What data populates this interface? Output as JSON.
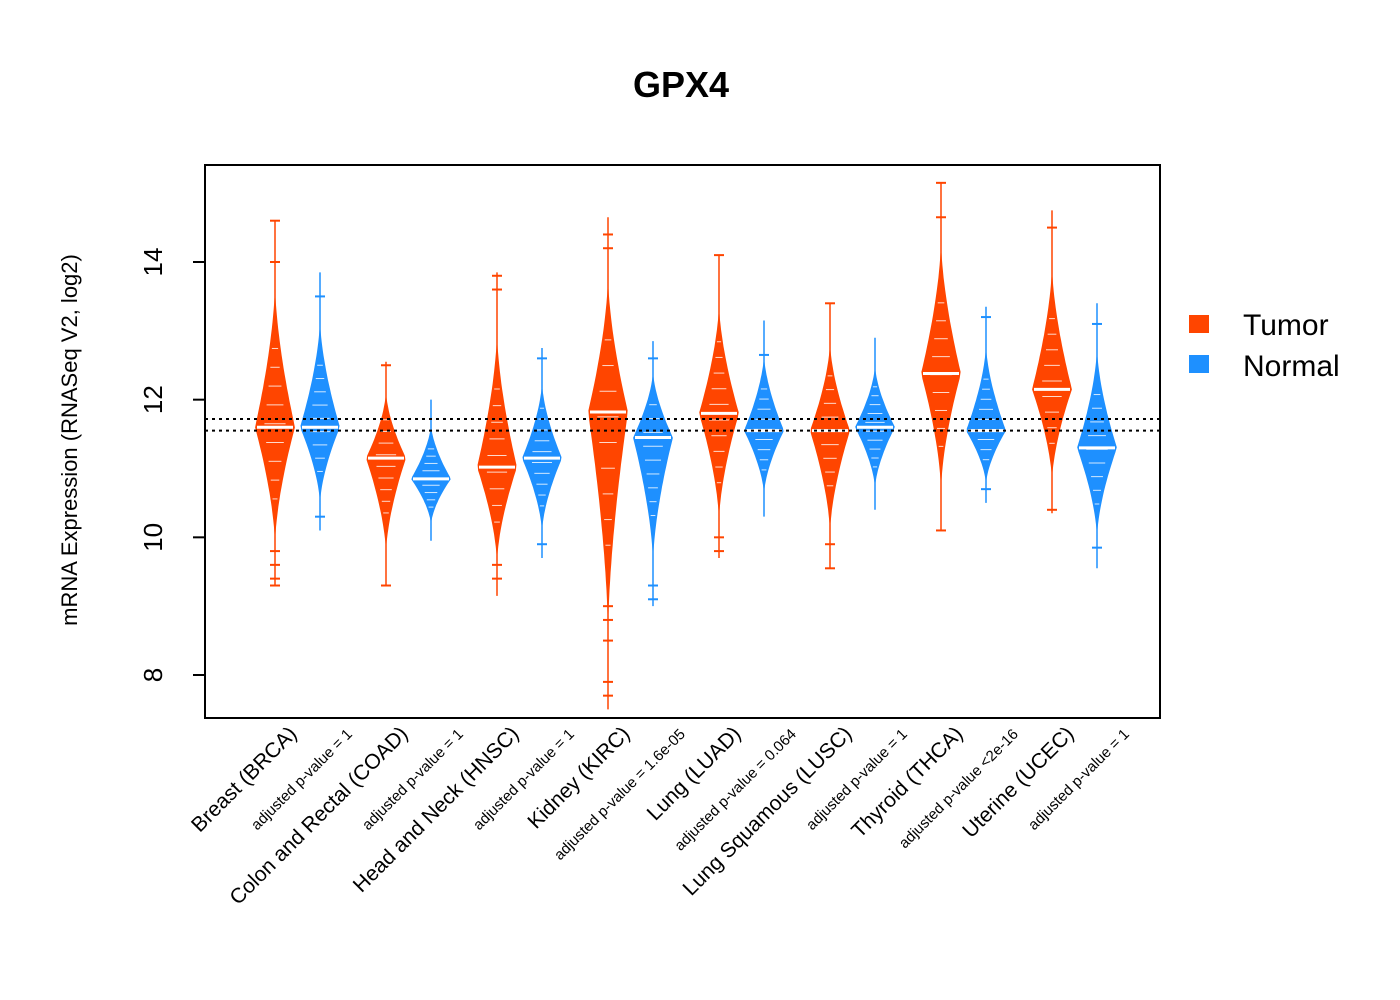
{
  "chart_data": {
    "type": "beanplot",
    "title": "GPX4",
    "xlabel": "",
    "ylabel": "mRNA Expression (RNASeq V2, log2)",
    "ylim": [
      7.4,
      15.4
    ],
    "yticks": [
      8,
      10,
      12,
      14
    ],
    "reference_lines": [
      11.55,
      11.72
    ],
    "colors": {
      "tumor": "#FF4500",
      "normal": "#1E90FF"
    },
    "legend": {
      "position": "right",
      "entries": [
        "Tumor",
        "Normal"
      ]
    },
    "categories": [
      "Breast (BRCA)",
      "Colon and Rectal (COAD)",
      "Head and Neck (HNSC)",
      "Kidney (KIRC)",
      "Lung (LUAD)",
      "Lung Squamous (LUSC)",
      "Thyroid (THCA)",
      "Uterine (UCEC)"
    ],
    "pvalue_labels": [
      "adjusted p-value = 1",
      "adjusted p-value = 1",
      "adjusted p-value = 1",
      "adjusted p-value = 1.6e-05",
      "adjusted p-value = 0.064",
      "adjusted p-value = 1",
      "adjusted p-value <2e-16",
      "adjusted p-value = 1"
    ],
    "series": [
      {
        "name": "Tumor",
        "median": [
          11.6,
          11.15,
          11.02,
          11.82,
          11.8,
          11.55,
          12.38,
          12.15
        ],
        "min": [
          9.3,
          9.3,
          9.15,
          7.5,
          9.7,
          9.55,
          10.1,
          10.35
        ],
        "max": [
          14.6,
          12.55,
          13.85,
          14.65,
          14.1,
          13.4,
          15.15,
          14.75
        ],
        "outliers_low": [
          [
            9.3,
            9.4,
            9.6,
            9.8
          ],
          [
            9.3
          ],
          [
            9.4,
            9.6
          ],
          [
            7.7,
            7.9,
            8.5,
            8.8,
            9.0
          ],
          [
            9.8,
            10.0
          ],
          [
            9.55,
            9.9
          ],
          [
            10.1
          ],
          [
            10.4
          ]
        ],
        "outliers_high": [
          [
            14.0,
            14.6
          ],
          [
            12.5
          ],
          [
            13.6,
            13.8
          ],
          [
            14.2,
            14.4
          ],
          [
            14.1
          ],
          [
            13.4
          ],
          [
            14.65,
            15.15
          ],
          [
            14.5
          ]
        ]
      },
      {
        "name": "Normal",
        "median": [
          11.6,
          10.85,
          11.15,
          11.45,
          11.55,
          11.6,
          11.55,
          11.3
        ],
        "min": [
          10.1,
          9.95,
          9.7,
          9.0,
          10.3,
          10.4,
          10.5,
          9.55
        ],
        "max": [
          13.85,
          12.0,
          12.75,
          12.85,
          13.15,
          12.9,
          13.35,
          13.4
        ],
        "outliers_low": [
          [
            10.3
          ],
          [],
          [
            9.9
          ],
          [
            9.1,
            9.3
          ],
          [],
          [],
          [
            10.7
          ],
          [
            9.85
          ]
        ],
        "outliers_high": [
          [
            13.5
          ],
          [],
          [
            12.6
          ],
          [
            12.6
          ],
          [
            12.65
          ],
          [],
          [
            13.2
          ],
          [
            13.1
          ]
        ]
      }
    ]
  }
}
